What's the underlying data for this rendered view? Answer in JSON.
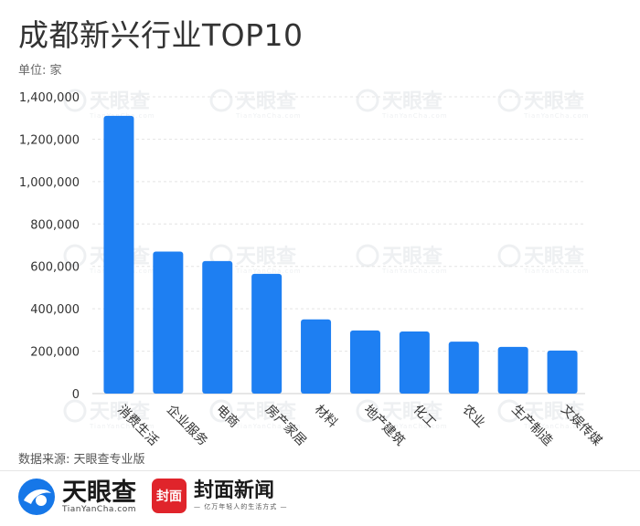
{
  "chart_data": {
    "type": "bar",
    "title": "成都新兴行业TOP10",
    "unit_label": "单位: 家",
    "categories": [
      "消费生活",
      "企业服务",
      "电商",
      "房产家居",
      "材料",
      "地产建筑",
      "化工",
      "农业",
      "生产制造",
      "文娱传媒"
    ],
    "values": [
      1310000,
      670000,
      625000,
      565000,
      350000,
      298000,
      293000,
      245000,
      220000,
      203000
    ],
    "yticks": [
      "0",
      "200,000",
      "400,000",
      "600,000",
      "800,000",
      "1,000,000",
      "1,200,000",
      "1,400,000"
    ],
    "ylim": [
      0,
      1400000
    ],
    "grid": true,
    "bar_color": "#1e7ff2"
  },
  "source": "数据来源: 天眼查专业版",
  "watermark": {
    "name": "天眼查",
    "sub": "TianYanCha.com"
  },
  "footer": {
    "tianyancha": {
      "name": "天眼查",
      "sub": "TianYanCha.com"
    },
    "fengmian": {
      "badge": "封面",
      "name": "封面新闻",
      "slogan": "— 亿万年轻人的生活方式 —"
    }
  }
}
